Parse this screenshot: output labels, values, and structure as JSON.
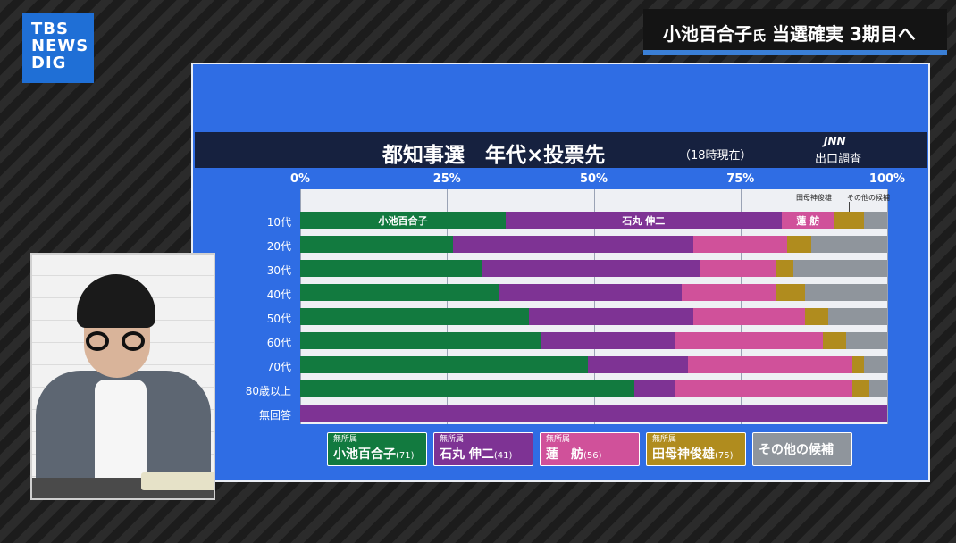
{
  "broadcaster": {
    "logo_lines": [
      "TBS",
      "NEWS",
      "DIG"
    ]
  },
  "headline": {
    "name": "小池百合子",
    "honorific": "氏",
    "rest": " 当選確実 3期目へ"
  },
  "chart_title": "都知事選　年代×投票先",
  "chart_subtitle": "（18時現在）",
  "source_top": "JNN",
  "source_bottom": "出口調査",
  "colors": {
    "koike": "#127a3f",
    "ishimaru": "#7e3394",
    "renho": "#d0519a",
    "tamogami": "#b08c1e",
    "other": "#8f959c"
  },
  "chart_data": {
    "type": "bar",
    "orientation": "horizontal-stacked-100",
    "xlim": [
      0,
      100
    ],
    "x_ticks": [
      "0%",
      "25%",
      "50%",
      "75%",
      "100%"
    ],
    "x_tick_values": [
      0,
      25,
      50,
      75,
      100
    ],
    "categories": [
      "10代",
      "20代",
      "30代",
      "40代",
      "50代",
      "60代",
      "70代",
      "80歳以上",
      "無回答"
    ],
    "series": [
      {
        "name": "小池百合子",
        "key": "koike",
        "values": [
          35,
          26,
          31,
          34,
          39,
          41,
          49,
          57,
          0
        ]
      },
      {
        "name": "石丸 伸二",
        "key": "ishimaru",
        "values": [
          47,
          41,
          37,
          31,
          28,
          23,
          17,
          7,
          100
        ]
      },
      {
        "name": "蓮 舫",
        "key": "renho",
        "values": [
          9,
          16,
          13,
          16,
          19,
          25,
          28,
          30,
          0
        ]
      },
      {
        "name": "田母神俊雄",
        "key": "tamogami",
        "values": [
          5,
          4,
          3,
          5,
          4,
          4,
          2,
          3,
          0
        ]
      },
      {
        "name": "その他の候補",
        "key": "other",
        "values": [
          4,
          13,
          16,
          14,
          10,
          7,
          4,
          3,
          0
        ]
      }
    ],
    "first_row_labels": [
      "小池百合子",
      "石丸 伸二",
      "蓮 舫"
    ],
    "first_row_notes": [
      "田母神俊雄",
      "その他の候補"
    ]
  },
  "legend": [
    {
      "affiliation": "無所属",
      "name": "小池百合子",
      "age": "(71)",
      "key": "koike"
    },
    {
      "affiliation": "無所属",
      "name": "石丸 伸二",
      "age": "(41)",
      "key": "ishimaru"
    },
    {
      "affiliation": "無所属",
      "name": "蓮　舫",
      "age": "(56)",
      "key": "renho"
    },
    {
      "affiliation": "無所属",
      "name": "田母神俊雄",
      "age": "(75)",
      "key": "tamogami"
    },
    {
      "affiliation": "",
      "name": "その他の候補",
      "age": "",
      "key": "other"
    }
  ]
}
